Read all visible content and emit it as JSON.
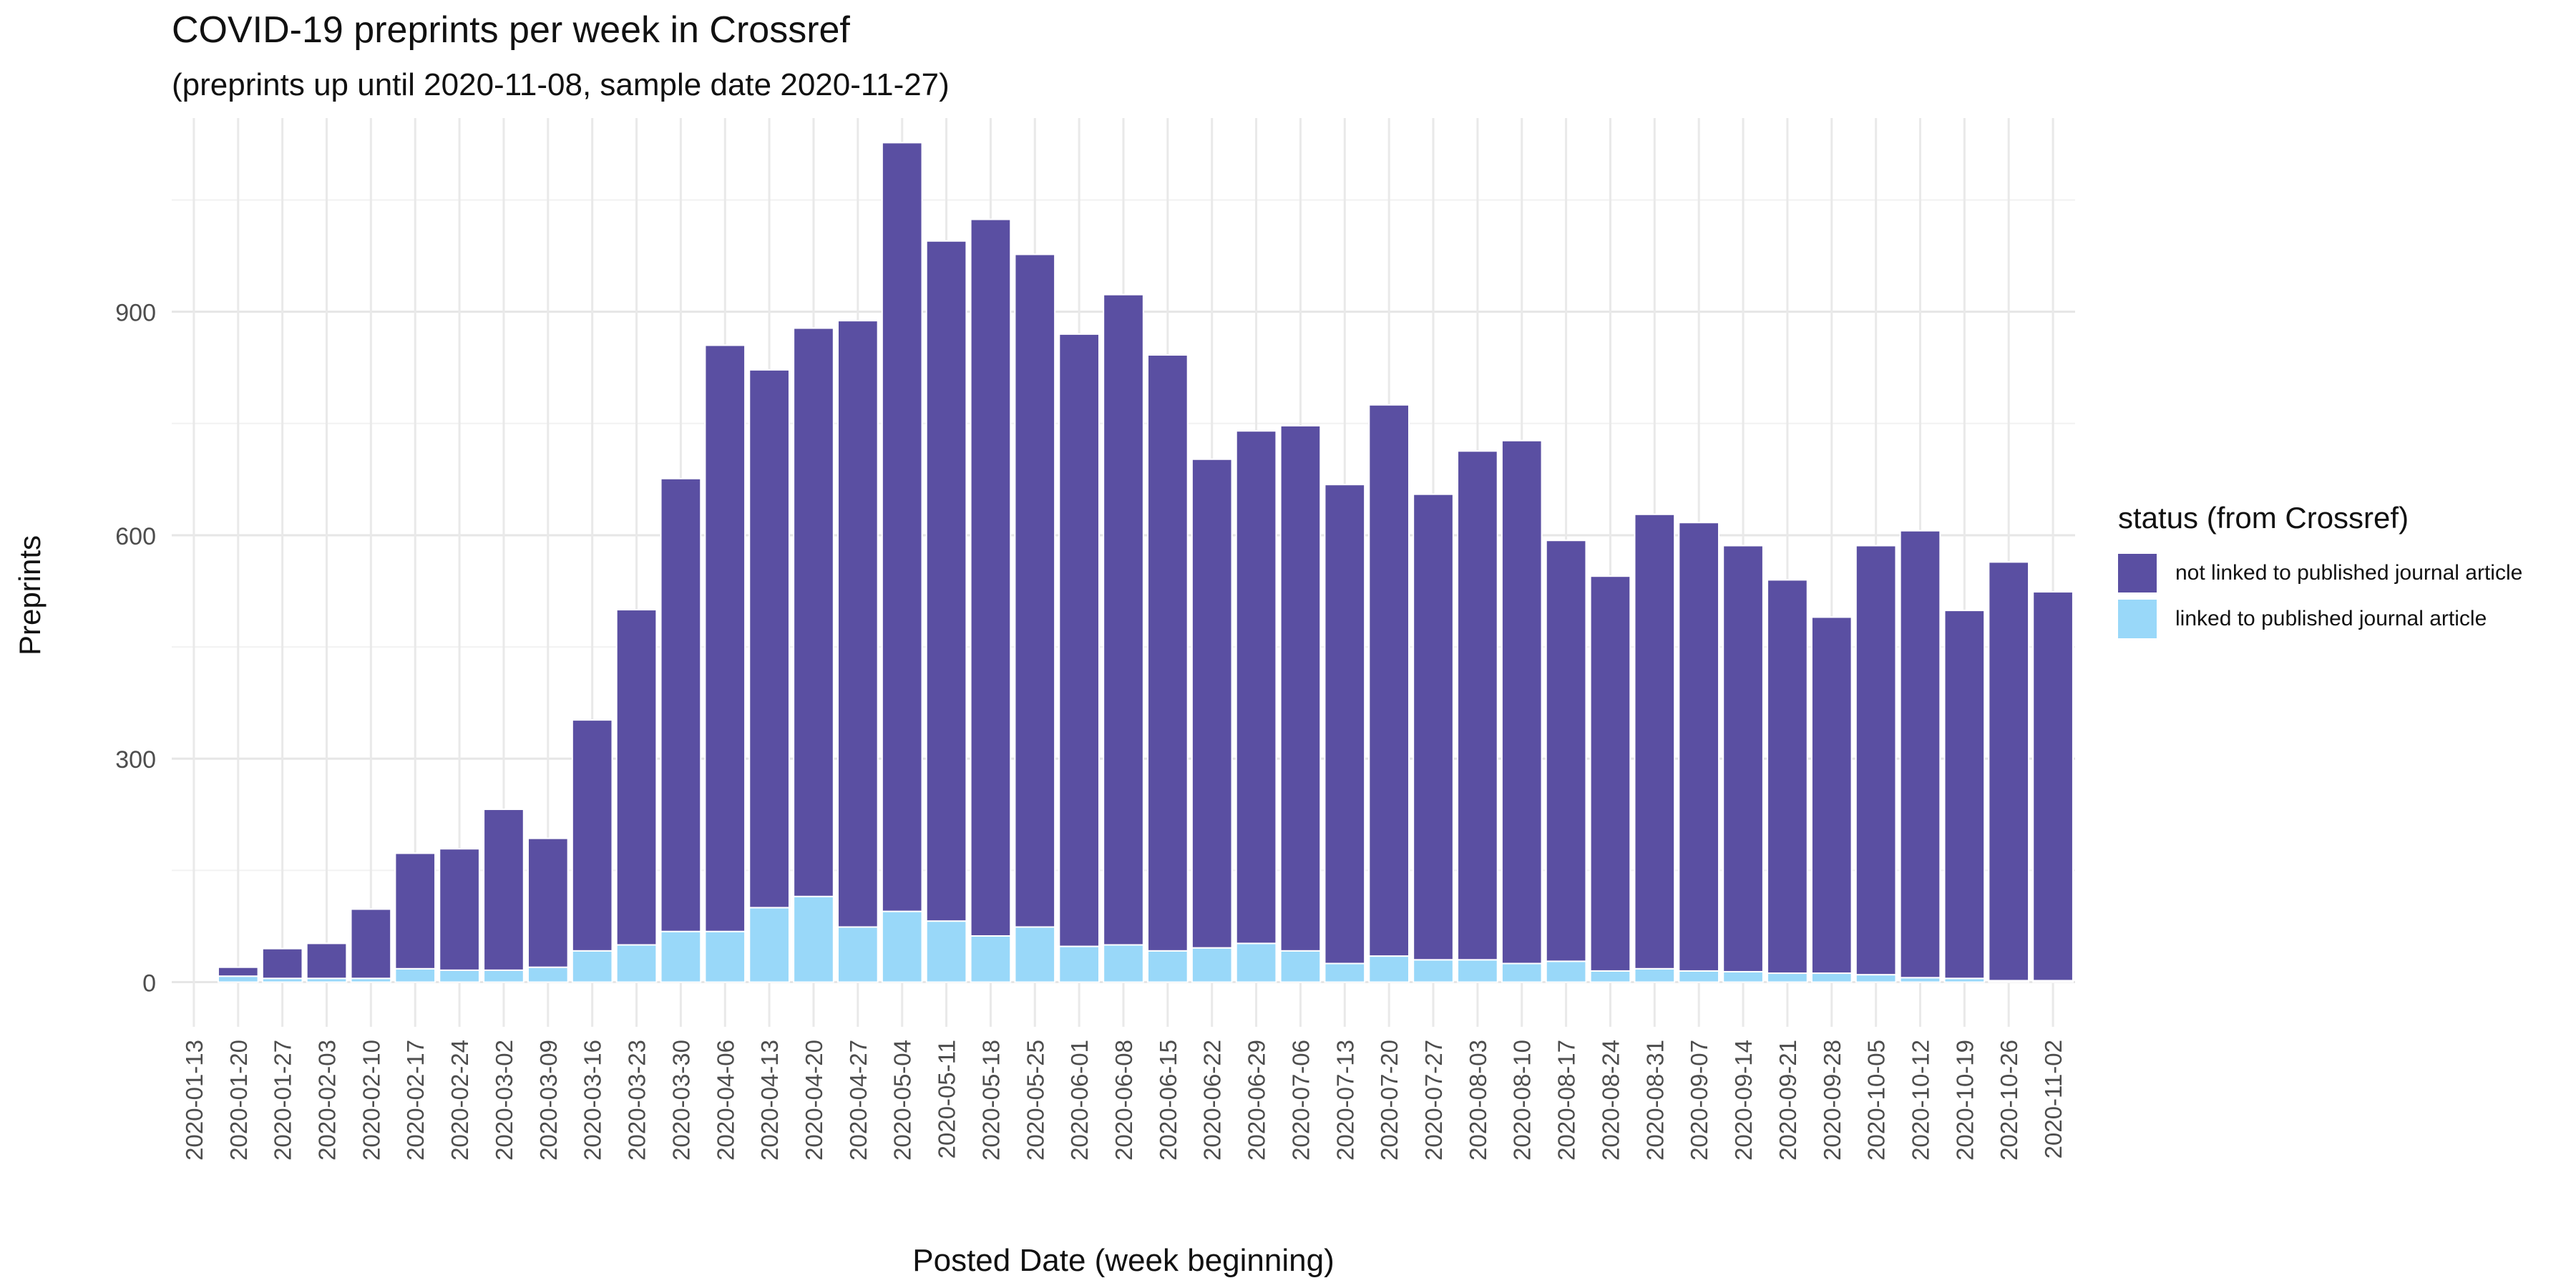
{
  "chart_data": {
    "type": "bar",
    "stacked": true,
    "title": "COVID-19 preprints per week in Crossref",
    "subtitle": "(preprints up until 2020-11-08, sample date 2020-11-27)",
    "xlabel": "Posted Date (week beginning)",
    "ylabel": "Preprints",
    "ylim": [
      -60,
      1160
    ],
    "yticks": [
      0,
      300,
      600,
      900
    ],
    "grid": true,
    "legend_position": "right",
    "legend_title": "status (from Crossref)",
    "categories": [
      "2020-01-13",
      "2020-01-20",
      "2020-01-27",
      "2020-02-03",
      "2020-02-10",
      "2020-02-17",
      "2020-02-24",
      "2020-03-02",
      "2020-03-09",
      "2020-03-16",
      "2020-03-23",
      "2020-03-30",
      "2020-04-06",
      "2020-04-13",
      "2020-04-20",
      "2020-04-27",
      "2020-05-04",
      "2020-05-11",
      "2020-05-18",
      "2020-05-25",
      "2020-06-01",
      "2020-06-08",
      "2020-06-15",
      "2020-06-22",
      "2020-06-29",
      "2020-07-06",
      "2020-07-13",
      "2020-07-20",
      "2020-07-27",
      "2020-08-03",
      "2020-08-10",
      "2020-08-17",
      "2020-08-24",
      "2020-08-31",
      "2020-09-07",
      "2020-09-14",
      "2020-09-21",
      "2020-09-28",
      "2020-10-05",
      "2020-10-12",
      "2020-10-19",
      "2020-10-26",
      "2020-11-02"
    ],
    "series": [
      {
        "name": "linked to published journal article",
        "color": "#99d8f9",
        "values": [
          0,
          8,
          5,
          5,
          5,
          18,
          16,
          16,
          20,
          42,
          50,
          68,
          68,
          100,
          115,
          74,
          95,
          82,
          62,
          74,
          48,
          50,
          42,
          46,
          52,
          42,
          25,
          35,
          30,
          30,
          25,
          28,
          15,
          18,
          15,
          14,
          12,
          12,
          10,
          6,
          5,
          2,
          2
        ]
      },
      {
        "name": "not linked to published journal article",
        "color": "#5a4fa2",
        "values": [
          0,
          12,
          40,
          47,
          93,
          155,
          163,
          216,
          173,
          310,
          450,
          608,
          787,
          722,
          763,
          814,
          1032,
          913,
          962,
          903,
          822,
          873,
          800,
          656,
          688,
          705,
          643,
          740,
          625,
          683,
          702,
          565,
          530,
          610,
          602,
          572,
          528,
          478,
          576,
          600,
          494,
          562,
          522
        ]
      }
    ]
  }
}
